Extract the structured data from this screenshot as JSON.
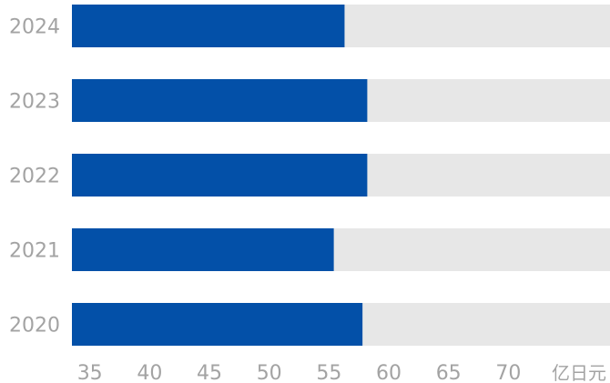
{
  "chart_data": {
    "type": "bar",
    "orientation": "horizontal",
    "categories": [
      "2024",
      "2023",
      "2022",
      "2021",
      "2020"
    ],
    "series": [
      {
        "values": [
          56.3,
          58.2,
          58.2,
          55.4,
          57.8
        ]
      }
    ],
    "xlim": [
      33.5,
      78.5
    ],
    "xticks": [
      "35",
      "40",
      "45",
      "50",
      "55",
      "60",
      "65",
      "70"
    ],
    "xtick_values": [
      35,
      40,
      45,
      50,
      55,
      60,
      65,
      70
    ],
    "unit_label": "亿日元",
    "grid": false,
    "legend": "none",
    "colors": {
      "bar": "#0350a8",
      "track": "#e7e7e7",
      "text": "#a3a3a3"
    }
  }
}
